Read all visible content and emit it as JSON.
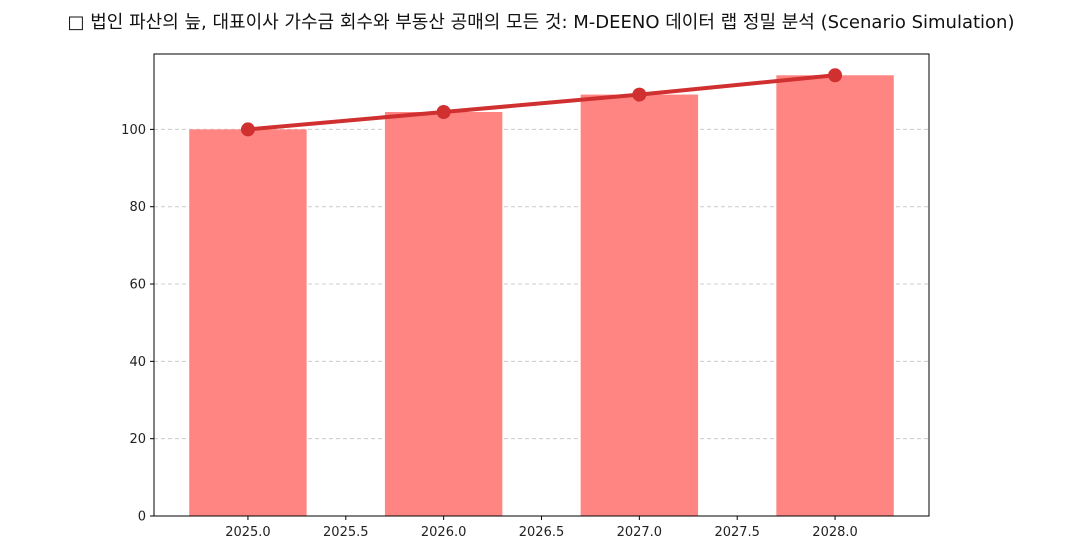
{
  "chart_data": {
    "type": "bar",
    "title": "□ 법인 파산의 늪, 대표이사 가수금 회수와 부동산 공매의 모든 것: M-DEENO 데이터 랩 정밀 분석 (Scenario Simulation)",
    "xlabel": "",
    "ylabel": "",
    "x": [
      2025,
      2026,
      2027,
      2028
    ],
    "bar_values": [
      100,
      104.5,
      109,
      114
    ],
    "line_values": [
      100,
      104.5,
      109,
      114
    ],
    "xlim": [
      2024.52,
      2028.48
    ],
    "ylim": [
      0,
      119.5
    ],
    "xticks": [
      "2025.0",
      "2025.5",
      "2026.0",
      "2026.5",
      "2027.0",
      "2027.5",
      "2028.0"
    ],
    "yticks": [
      "0",
      "20",
      "40",
      "60",
      "80",
      "100"
    ],
    "grid": "y-dashed",
    "legend": "none",
    "colors": {
      "bar": "#ff8582",
      "line": "#d03030",
      "grid": "#cccccc"
    }
  }
}
